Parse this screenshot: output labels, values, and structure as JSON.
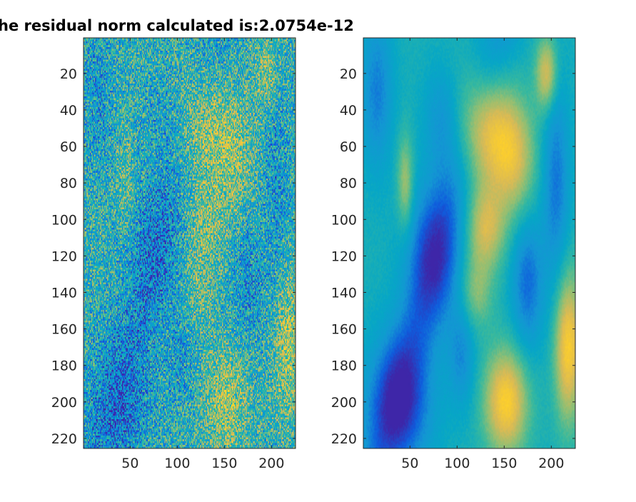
{
  "figure": {
    "title": "he residual norm calculated is:2.0754e-12"
  },
  "chart_data": [
    {
      "type": "heatmap",
      "title": "he residual norm calculated is:2.0754e-12",
      "colormap": "parula",
      "style": "noisy",
      "xlim": [
        0.5,
        225.5
      ],
      "ylim": [
        0.5,
        225.5
      ],
      "y_direction": "reverse",
      "x_ticks": [
        50,
        100,
        150,
        200
      ],
      "y_ticks": [
        20,
        40,
        60,
        80,
        100,
        120,
        140,
        160,
        180,
        200,
        220
      ],
      "colors": [
        "#3e26a8",
        "#0f5cdd",
        "#1496d4",
        "#06a7c6",
        "#38b99e",
        "#92bf73",
        "#d9ba56",
        "#fcce2e",
        "#f9fb15"
      ]
    },
    {
      "type": "heatmap",
      "title": "",
      "colormap": "parula",
      "style": "smooth",
      "xlim": [
        0.5,
        225.5
      ],
      "ylim": [
        0.5,
        225.5
      ],
      "y_direction": "reverse",
      "x_ticks": [
        50,
        100,
        150,
        200
      ],
      "y_ticks": [
        20,
        40,
        60,
        80,
        100,
        120,
        140,
        160,
        180,
        200,
        220
      ],
      "colors": [
        "#3e26a8",
        "#0f5cdd",
        "#1496d4",
        "#06a7c6",
        "#38b99e",
        "#92bf73",
        "#d9ba56",
        "#fcce2e",
        "#f9fb15"
      ]
    }
  ]
}
